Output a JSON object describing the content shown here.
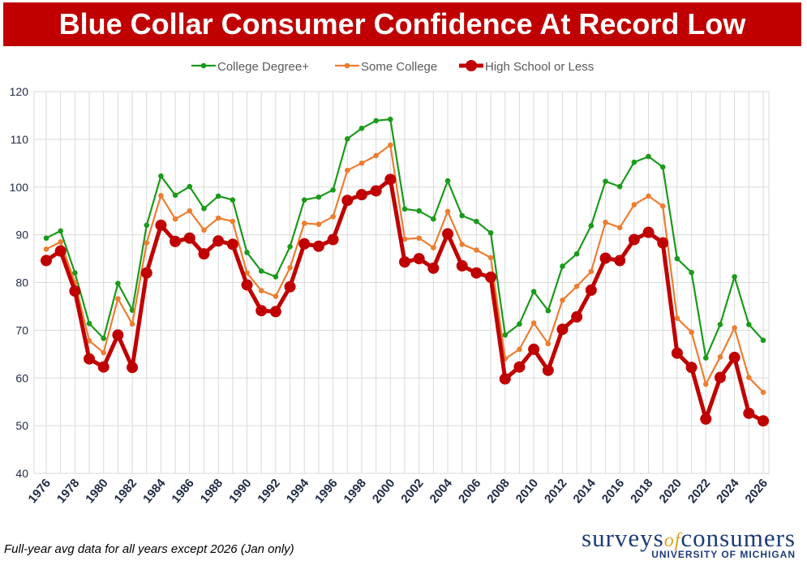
{
  "chart_data": {
    "type": "line",
    "title": "Blue Collar Consumer Confidence At Record Low",
    "footnote": "Full-year avg data for all years except 2026 (Jan only)",
    "source": "surveys of consumers",
    "source_of": "of",
    "source_main": "consumers",
    "source_prefix": "surveys",
    "source_sub": "UNIVERSITY OF MICHIGAN",
    "ylim": [
      40,
      120
    ],
    "yticks": [
      "40",
      "50",
      "60",
      "70",
      "80",
      "90",
      "100",
      "110",
      "120"
    ],
    "x": [
      1976,
      1977,
      1978,
      1979,
      1980,
      1981,
      1982,
      1983,
      1984,
      1985,
      1986,
      1987,
      1988,
      1989,
      1990,
      1991,
      1992,
      1993,
      1994,
      1995,
      1996,
      1997,
      1998,
      1999,
      2000,
      2001,
      2002,
      2003,
      2004,
      2005,
      2006,
      2007,
      2008,
      2009,
      2010,
      2011,
      2012,
      2013,
      2014,
      2015,
      2016,
      2017,
      2018,
      2019,
      2020,
      2021,
      2022,
      2023,
      2024,
      2025,
      2026
    ],
    "xticks": [
      "1976",
      "1978",
      "1980",
      "1982",
      "1984",
      "1986",
      "1988",
      "1990",
      "1992",
      "1994",
      "1996",
      "1998",
      "2000",
      "2002",
      "2004",
      "2006",
      "2008",
      "2010",
      "2012",
      "2014",
      "2016",
      "2018",
      "2020",
      "2022",
      "2024",
      "2026"
    ],
    "grid": true,
    "legend_position": "top-center",
    "series": [
      {
        "name": "College Degree+",
        "color": "#1a9a1a",
        "values": [
          89.3,
          90.8,
          82.0,
          71.4,
          68.3,
          79.8,
          74.2,
          92.0,
          102.3,
          98.3,
          100.1,
          95.5,
          98.1,
          97.3,
          86.3,
          82.4,
          81.2,
          87.5,
          97.3,
          97.9,
          99.4,
          110.1,
          112.3,
          113.9,
          114.2,
          95.4,
          95.0,
          93.3,
          101.3,
          94.0,
          92.8,
          90.4,
          69.0,
          71.3,
          78.1,
          74.1,
          83.4,
          86.0,
          91.9,
          101.2,
          100.1,
          105.2,
          106.4,
          104.2,
          85.0,
          82.1,
          64.2,
          71.2,
          81.2,
          71.2,
          67.9
        ]
      },
      {
        "name": "Some College",
        "color": "#ed7d31",
        "values": [
          87.0,
          88.5,
          80.0,
          67.8,
          65.3,
          76.6,
          71.3,
          88.3,
          98.2,
          93.3,
          95.0,
          91.0,
          93.5,
          92.8,
          82.0,
          78.3,
          77.1,
          83.1,
          92.4,
          92.2,
          93.8,
          103.5,
          105.0,
          106.6,
          108.8,
          89.1,
          89.3,
          87.3,
          94.9,
          88.0,
          86.8,
          85.2,
          64.0,
          66.0,
          71.5,
          67.2,
          76.3,
          79.2,
          82.3,
          92.6,
          91.5,
          96.3,
          98.1,
          96.0,
          72.5,
          69.6,
          58.7,
          64.4,
          70.5,
          60.1,
          57.0
        ]
      },
      {
        "name": "High School or Less",
        "color": "#c00000",
        "values": [
          84.6,
          86.6,
          78.2,
          64.0,
          62.3,
          69.0,
          62.2,
          82.0,
          92.0,
          88.6,
          89.3,
          86.0,
          88.7,
          88.0,
          79.5,
          74.1,
          73.9,
          79.1,
          88.1,
          87.6,
          89.0,
          97.2,
          98.4,
          99.2,
          101.6,
          84.3,
          85.0,
          83.0,
          90.2,
          83.5,
          82.0,
          81.1,
          59.8,
          62.3,
          66.0,
          61.6,
          70.2,
          72.8,
          78.4,
          85.1,
          84.6,
          89.0,
          90.5,
          88.3,
          65.2,
          62.2,
          51.4,
          60.1,
          64.3,
          52.6,
          51.0
        ]
      }
    ]
  }
}
